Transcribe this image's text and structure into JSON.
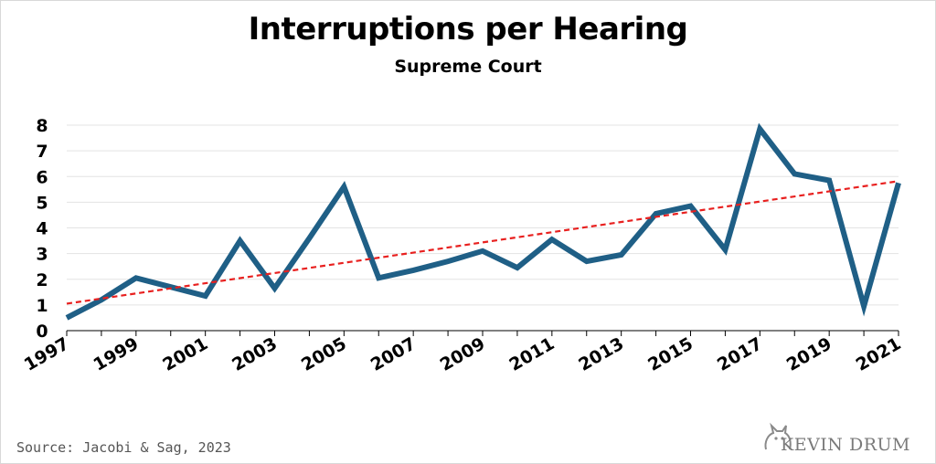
{
  "chart_data": {
    "type": "line",
    "title": "Interruptions per Hearing",
    "subtitle": "Supreme Court",
    "xlabel": "",
    "ylabel": "",
    "x": [
      1997,
      1998,
      1999,
      2000,
      2001,
      2002,
      2003,
      2004,
      2005,
      2006,
      2007,
      2008,
      2009,
      2010,
      2011,
      2012,
      2013,
      2014,
      2015,
      2016,
      2017,
      2018,
      2019,
      2020,
      2021
    ],
    "x_tick_labels": [
      "1997",
      "1999",
      "2001",
      "2003",
      "2005",
      "2007",
      "2009",
      "2011",
      "2013",
      "2015",
      "2017",
      "2019",
      "2021"
    ],
    "y_tick_labels": [
      "0",
      "1",
      "2",
      "3",
      "4",
      "5",
      "6",
      "7",
      "8"
    ],
    "ylim": [
      0,
      8
    ],
    "xlim": [
      1997,
      2021
    ],
    "grid": true,
    "series": [
      {
        "values": [
          0.5,
          1.2,
          2.05,
          1.7,
          1.35,
          3.5,
          1.65,
          3.6,
          5.6,
          2.05,
          2.35,
          2.7,
          3.1,
          2.45,
          3.55,
          2.7,
          2.95,
          4.55,
          4.85,
          3.15,
          7.85,
          6.1,
          5.85,
          0.95,
          5.75
        ],
        "color": "#1f5f86"
      }
    ],
    "trendline": {
      "start": 1.05,
      "end": 5.82,
      "color": "#e8201f",
      "style": "dashed"
    },
    "source": "Source: Jacobi & Sag, 2023"
  },
  "brand": {
    "text": "KEVIN DRUM"
  }
}
